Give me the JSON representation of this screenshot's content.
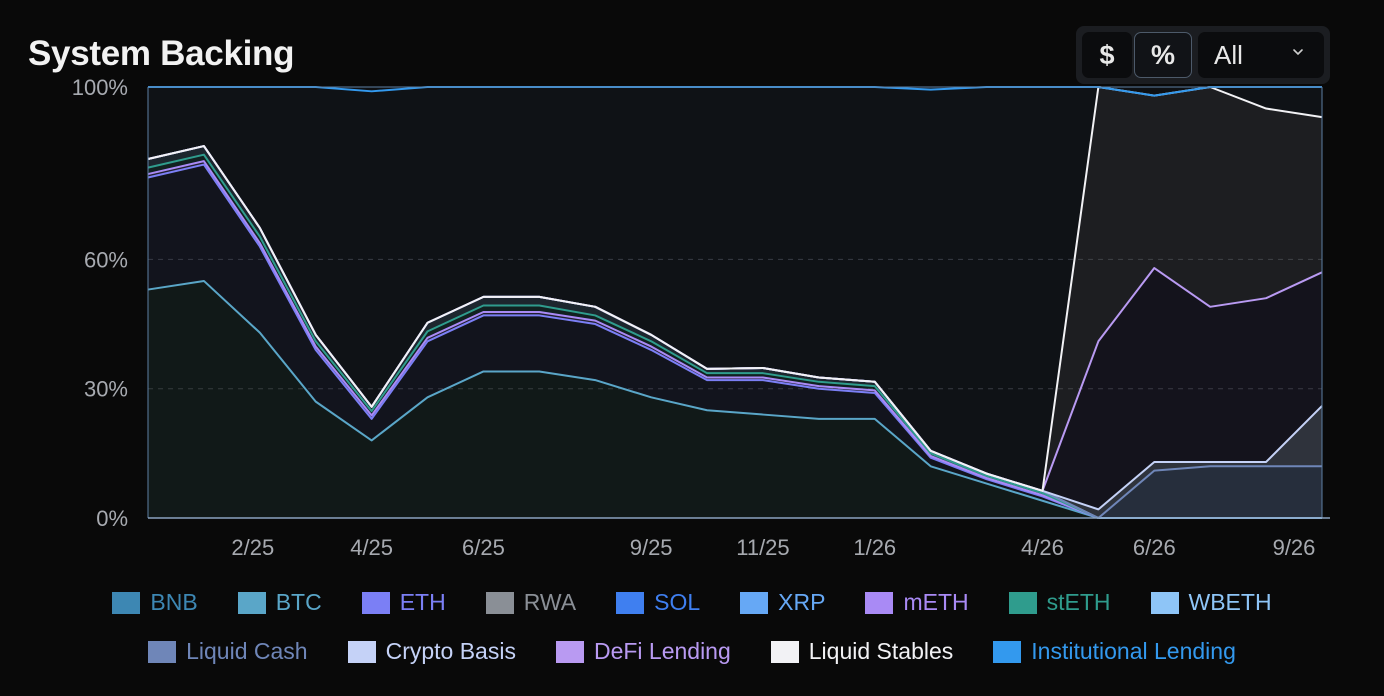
{
  "header": {
    "title": "System Backing",
    "btn_dollar": "$",
    "btn_percent": "%",
    "range_value": "All",
    "active_unit": "%"
  },
  "chart_data": {
    "type": "area",
    "stacked": true,
    "y_unit": "%",
    "ylim": [
      0,
      100
    ],
    "yticks": [
      0,
      30,
      60,
      100
    ],
    "ytick_labels": [
      "0%",
      "30%",
      "60%",
      "100%"
    ],
    "xtick_labels": [
      "2/25",
      "4/25",
      "6/25",
      "9/25",
      "11/25",
      "1/26",
      "4/26",
      "6/26",
      "9/26"
    ],
    "grid": true,
    "legend_position": "bottom",
    "x": [
      "12/24",
      "1/25",
      "2/25",
      "3/25",
      "4/25",
      "5/25",
      "6/25",
      "7/25",
      "8/25",
      "9/25",
      "10/25",
      "11/25",
      "12/25",
      "1/26",
      "2/26",
      "3/26",
      "4/26",
      "5/26",
      "6/26",
      "7/26",
      "8/26",
      "9/26"
    ],
    "series": [
      {
        "name": "BNB",
        "color": "#3d87b3",
        "values": [
          0,
          0,
          0,
          0,
          0,
          0,
          0,
          0,
          0,
          0,
          0,
          0,
          0,
          0,
          0,
          0,
          0,
          0,
          0,
          0,
          0,
          0
        ]
      },
      {
        "name": "BTC",
        "color": "#5aa6c8",
        "values": [
          53,
          55,
          43,
          27,
          18,
          28,
          34,
          34,
          32,
          28,
          25,
          24,
          23,
          23,
          12,
          8,
          4,
          0,
          0,
          0,
          0,
          0
        ]
      },
      {
        "name": "ETH",
        "color": "#7b7ff5",
        "values": [
          26,
          27,
          20,
          12,
          5,
          13,
          13,
          13,
          13,
          11,
          7,
          8,
          7,
          6,
          2,
          1,
          1,
          0,
          0,
          0,
          0,
          0
        ]
      },
      {
        "name": "RWA",
        "color": "#8a8f96",
        "values": [
          0,
          0,
          0,
          0,
          0,
          0,
          0,
          0,
          0,
          0,
          0,
          0,
          0,
          0,
          0,
          0,
          0,
          0,
          0,
          0,
          0,
          0
        ]
      },
      {
        "name": "SOL",
        "color": "#3f7ff0",
        "values": [
          0,
          0,
          0,
          0,
          0,
          0,
          0,
          0,
          0,
          0,
          0,
          0,
          0,
          0,
          0,
          0,
          0,
          0,
          0,
          0,
          0,
          0
        ]
      },
      {
        "name": "XRP",
        "color": "#66a8f5",
        "values": [
          0,
          0,
          0,
          0,
          0,
          0,
          0,
          0,
          0,
          0,
          0,
          0,
          0,
          0,
          0,
          0,
          0,
          0,
          0,
          0,
          0,
          0
        ]
      },
      {
        "name": "mETH",
        "color": "#a98af5",
        "values": [
          0.8,
          0.8,
          0.8,
          0.8,
          0.8,
          0.8,
          0.8,
          0.8,
          0.8,
          0.8,
          0.6,
          0.6,
          0.6,
          0.6,
          0.4,
          0.3,
          0.3,
          0,
          0,
          0,
          0,
          0
        ]
      },
      {
        "name": "stETH",
        "color": "#2f9c8d",
        "values": [
          1.5,
          1.5,
          1.5,
          1.2,
          1,
          1.5,
          1.5,
          1.5,
          1.2,
          1.2,
          1,
          1,
          1,
          1,
          0.6,
          0.5,
          0.5,
          0,
          0,
          0,
          0,
          0
        ]
      },
      {
        "name": "WBETH",
        "color": "#8ec5f7",
        "values": [
          2,
          2,
          2,
          1.5,
          1,
          2,
          2,
          2,
          2,
          1.5,
          1,
          1.2,
          1,
          1,
          0.6,
          0.5,
          0.5,
          0,
          0,
          0,
          0,
          0
        ]
      },
      {
        "name": "Liquid Cash",
        "color": "#6f86b8",
        "values": [
          0,
          0,
          0,
          0,
          0,
          0,
          0,
          0,
          0,
          0,
          0,
          0,
          0,
          0,
          0,
          0,
          0,
          0,
          11,
          12,
          12,
          12
        ]
      },
      {
        "name": "Crypto Basis",
        "color": "#c5d2f7",
        "values": [
          0,
          0,
          0,
          0,
          0,
          0,
          0,
          0,
          0,
          0,
          0,
          0,
          0,
          0,
          0,
          0,
          0,
          2,
          2,
          1,
          1,
          14
        ]
      },
      {
        "name": "DeFi Lending",
        "color": "#b99af2",
        "values": [
          0,
          0,
          0,
          0,
          0,
          0,
          0,
          0,
          0,
          0,
          0,
          0,
          0,
          0,
          0,
          0,
          0,
          39,
          45,
          36,
          38,
          31
        ]
      },
      {
        "name": "Liquid Stables",
        "color": "#f2f2f5",
        "values": [
          0,
          0,
          0,
          0,
          0,
          0,
          0,
          0,
          0,
          0,
          0,
          0,
          0,
          0,
          0,
          0,
          0,
          59,
          40,
          51,
          44,
          36
        ]
      },
      {
        "name": "Institutional Lending",
        "color": "#3399ee",
        "values": [
          16.7,
          13.7,
          32.7,
          57.5,
          73.2,
          54.7,
          48.7,
          48.7,
          51,
          57.5,
          65.4,
          65.2,
          67.4,
          68.4,
          83.8,
          89.7,
          93.7,
          0,
          0,
          0,
          5,
          7
        ]
      }
    ]
  }
}
